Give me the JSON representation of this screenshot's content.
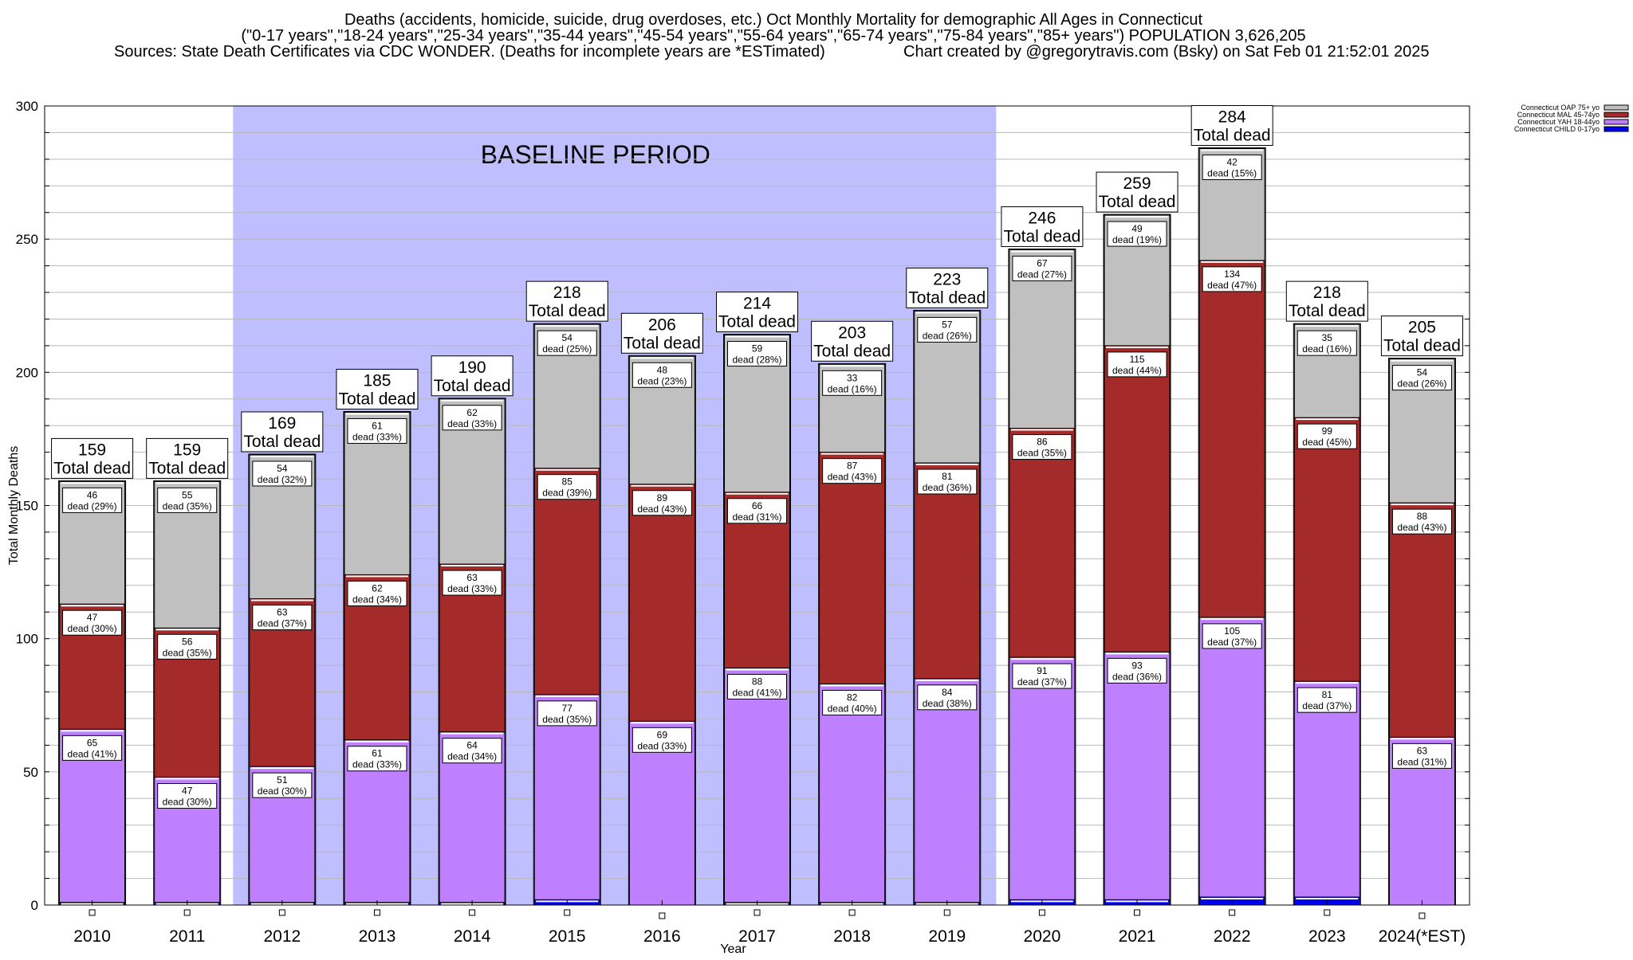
{
  "header": {
    "line1": "Deaths (accidents, homicide, suicide, drug overdoses, etc.) Oct Monthly Mortality for demographic All Ages in Connecticut",
    "line2": "(\"0-17 years\",\"18-24 years\",\"25-34 years\",\"35-44 years\",\"45-54 years\",\"55-64 years\",\"65-74 years\",\"75-84 years\",\"85+ years\") POPULATION 3,626,205",
    "line3_left": "Sources: State Death Certificates via CDC WONDER. (Deaths for incomplete years are *ESTimated)",
    "line3_right": "Chart created by @gregorytravis.com (Bsky) on Sat Feb 01 21:52:01 2025"
  },
  "chart_data": {
    "type": "bar",
    "stacked": true,
    "xlabel": "Year",
    "ylabel": "Total Monthly Deaths",
    "ylim": [
      0,
      300
    ],
    "yticks": [
      0,
      50,
      100,
      150,
      200,
      250,
      300
    ],
    "grid": true,
    "legend_position": "top-right",
    "categories": [
      "2010",
      "2011",
      "2012",
      "2013",
      "2014",
      "2015",
      "2016",
      "2017",
      "2018",
      "2019",
      "2020",
      "2021",
      "2022",
      "2023",
      "2024(*EST)"
    ],
    "series": [
      {
        "name": "Connecticut CHILD 0-17yo",
        "color": "#0000ee",
        "values": [
          1,
          1,
          1,
          1,
          1,
          2,
          0,
          1,
          1,
          1,
          2,
          2,
          3,
          3,
          0
        ]
      },
      {
        "name": "Connecticut YAH 18-44yo",
        "color": "#bf80ff",
        "values": [
          65,
          47,
          51,
          61,
          64,
          77,
          69,
          88,
          82,
          84,
          91,
          93,
          105,
          81,
          63
        ],
        "labels": [
          "65",
          "47",
          "51",
          "61",
          "64",
          "77",
          "69",
          "88",
          "82",
          "84",
          "91",
          "93",
          "105",
          "81",
          "63"
        ],
        "pct": [
          "dead (41%)",
          "dead (30%)",
          "dead (30%)",
          "dead (33%)",
          "dead (34%)",
          "dead (35%)",
          "dead (33%)",
          "dead (41%)",
          "dead (40%)",
          "dead (38%)",
          "dead (37%)",
          "dead (36%)",
          "dead (37%)",
          "dead (37%)",
          "dead (31%)"
        ]
      },
      {
        "name": "Connecticut MAL 45-74yo",
        "color": "#a52a2a",
        "values": [
          47,
          56,
          63,
          62,
          63,
          85,
          89,
          66,
          87,
          81,
          86,
          115,
          134,
          99,
          88
        ],
        "labels": [
          "47",
          "56",
          "63",
          "62",
          "63",
          "85",
          "89",
          "66",
          "87",
          "81",
          "86",
          "115",
          "134",
          "99",
          "88"
        ],
        "pct": [
          "dead (30%)",
          "dead (35%)",
          "dead (37%)",
          "dead (34%)",
          "dead (33%)",
          "dead (39%)",
          "dead (43%)",
          "dead (31%)",
          "dead (43%)",
          "dead (36%)",
          "dead (35%)",
          "dead (44%)",
          "dead (47%)",
          "dead (45%)",
          "dead (43%)"
        ]
      },
      {
        "name": "Connecticut OAP 75+ yo",
        "color": "#c0c0c0",
        "values": [
          46,
          55,
          54,
          61,
          62,
          54,
          48,
          59,
          33,
          57,
          67,
          49,
          42,
          35,
          54
        ],
        "labels": [
          "46",
          "55",
          "54",
          "61",
          "62",
          "54",
          "48",
          "59",
          "33",
          "57",
          "67",
          "49",
          "42",
          "35",
          "54"
        ],
        "pct": [
          "dead (29%)",
          "dead (35%)",
          "dead (32%)",
          "dead (33%)",
          "dead (33%)",
          "dead (25%)",
          "dead (23%)",
          "dead (28%)",
          "dead (16%)",
          "dead (26%)",
          "dead (27%)",
          "dead (19%)",
          "dead (15%)",
          "dead (16%)",
          "dead (26%)"
        ]
      }
    ],
    "totals": [
      159,
      159,
      169,
      185,
      190,
      218,
      206,
      214,
      203,
      223,
      246,
      259,
      284,
      218,
      205
    ],
    "total_labels": [
      "159",
      "159",
      "169",
      "185",
      "190",
      "218",
      "206",
      "214",
      "203",
      "223",
      "246",
      "259",
      "284",
      "218",
      "205"
    ],
    "total_suffix": "Total dead",
    "baseline": {
      "label": "BASELINE PERIOD",
      "from": "2012",
      "to": "2019",
      "color": "#bfbfff"
    }
  }
}
